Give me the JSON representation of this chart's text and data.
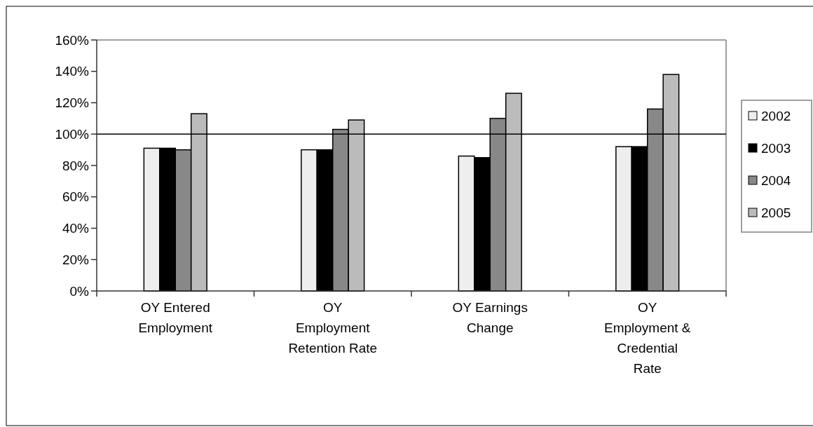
{
  "chart_data": {
    "type": "bar",
    "categories": [
      "OY Entered Employment",
      "OY Employment Retention Rate",
      "OY Earnings Change",
      "OY Employment & Credential Rate"
    ],
    "series": [
      {
        "name": "2002",
        "color": "#eeeeee",
        "values": [
          91,
          90,
          86,
          92
        ]
      },
      {
        "name": "2003",
        "color": "#000000",
        "values": [
          91,
          90,
          85,
          92
        ]
      },
      {
        "name": "2004",
        "color": "#888888",
        "values": [
          90,
          103,
          110,
          116
        ]
      },
      {
        "name": "2005",
        "color": "#bbbbbb",
        "values": [
          113,
          109,
          126,
          138
        ]
      }
    ],
    "ylim": [
      0,
      160
    ],
    "yticks": [
      {
        "value": 0,
        "label": "0%"
      },
      {
        "value": 20,
        "label": "20%"
      },
      {
        "value": 40,
        "label": "40%"
      },
      {
        "value": 60,
        "label": "60%"
      },
      {
        "value": 80,
        "label": "80%"
      },
      {
        "value": 100,
        "label": "100%"
      },
      {
        "value": 120,
        "label": "120%"
      },
      {
        "value": 140,
        "label": "140%"
      },
      {
        "value": 160,
        "label": "160%"
      }
    ],
    "ref_lines": [
      {
        "axis": "y",
        "value": 100,
        "color": "#000000"
      }
    ],
    "grid": false,
    "legend": "right"
  }
}
